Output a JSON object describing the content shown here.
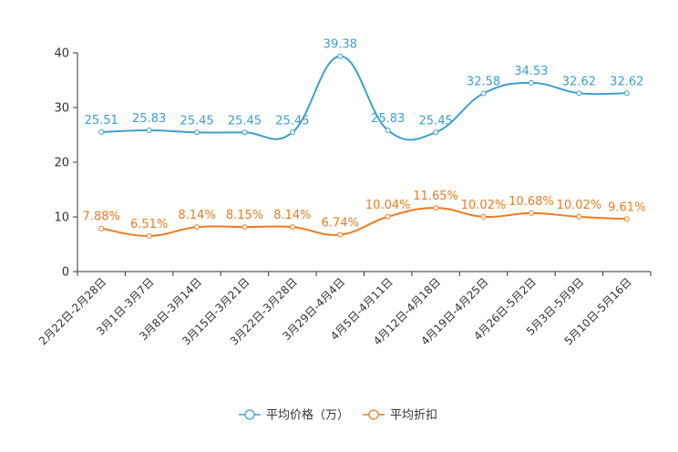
{
  "chart_data": {
    "type": "line",
    "categories": [
      "2月22日-2月28日",
      "3月1日-3月7日",
      "3月8日-3月14日",
      "3月15日-3月21日",
      "3月22日-3月28日",
      "3月29日-4月4日",
      "4月5日-4月11日",
      "4月12日-4月18日",
      "4月19日-4月25日",
      "4月26日-5月2日",
      "5月3日-5月9日",
      "5月10日-5月16日"
    ],
    "ylim": [
      0,
      40
    ],
    "yticks": [
      0,
      10,
      20,
      30,
      40
    ],
    "series": [
      {
        "name": "平均价格（万）",
        "color": "#3d9fcc",
        "values": [
          25.51,
          25.83,
          25.45,
          25.45,
          25.45,
          39.38,
          25.83,
          25.45,
          32.58,
          34.53,
          32.62,
          32.62
        ],
        "labels": [
          "25.51",
          "25.83",
          "25.45",
          "25.45",
          "25.45",
          "39.38",
          "25.83",
          "25.45",
          "32.58",
          "34.53",
          "32.62",
          "32.62"
        ]
      },
      {
        "name": "平均折扣",
        "color": "#f07a1e",
        "values": [
          7.88,
          6.51,
          8.14,
          8.15,
          8.14,
          6.74,
          10.04,
          11.65,
          10.02,
          10.68,
          10.02,
          9.61
        ],
        "labels": [
          "7.88%",
          "6.51%",
          "8.14%",
          "8.15%",
          "8.14%",
          "6.74%",
          "10.04%",
          "11.65%",
          "10.02%",
          "10.68%",
          "10.02%",
          "9.61%"
        ]
      }
    ],
    "legend_position": "bottom-center"
  }
}
